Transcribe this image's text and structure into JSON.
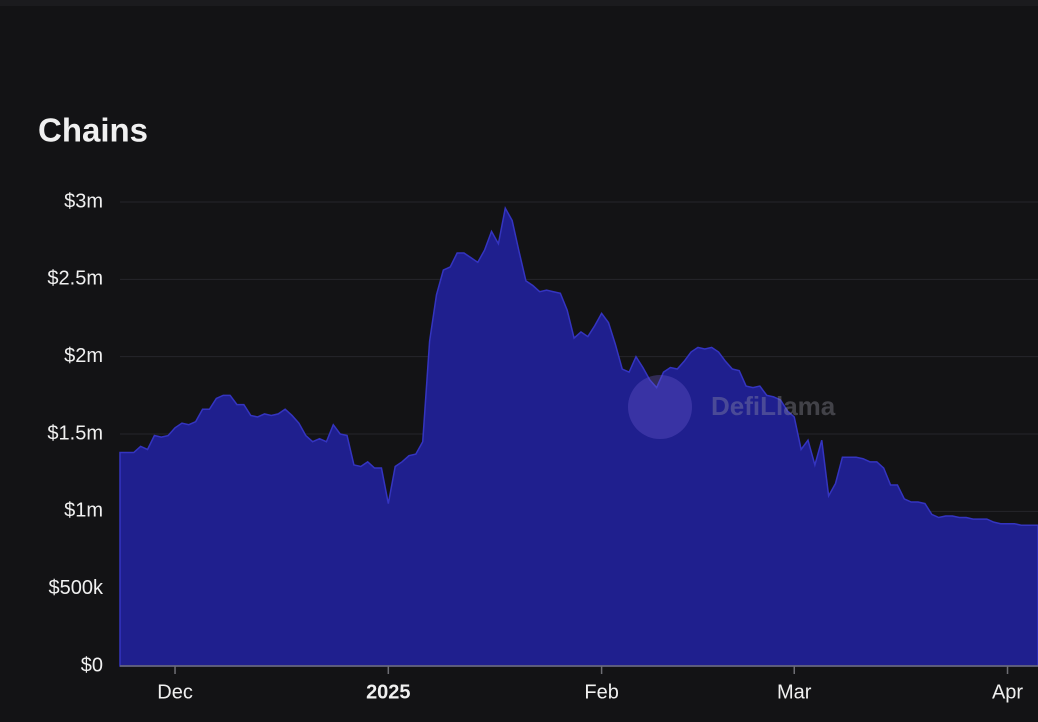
{
  "chart_data": {
    "type": "area",
    "title": "Chains",
    "watermark": "DefiLlama",
    "color": "#1f1f8e",
    "line_color": "#3434c0",
    "grid": true,
    "ylim": [
      0,
      3
    ],
    "yticks": [
      {
        "value": 0,
        "label": "$0"
      },
      {
        "value": 0.5,
        "label": "$500k"
      },
      {
        "value": 1,
        "label": "$1m"
      },
      {
        "value": 1.5,
        "label": "$1.5m"
      },
      {
        "value": 2,
        "label": "$2m"
      },
      {
        "value": 2.5,
        "label": "$2.5m"
      },
      {
        "value": 3,
        "label": "$3m"
      }
    ],
    "categories": [
      null,
      null,
      null,
      null,
      null,
      null,
      null,
      null,
      "Dec",
      null,
      null,
      null,
      null,
      null,
      null,
      null,
      null,
      null,
      null,
      null,
      null,
      null,
      null,
      null,
      null,
      null,
      null,
      null,
      null,
      null,
      null,
      null,
      null,
      null,
      null,
      null,
      null,
      null,
      null,
      "2025",
      null,
      null,
      null,
      null,
      null,
      null,
      null,
      null,
      null,
      null,
      null,
      null,
      null,
      null,
      null,
      null,
      null,
      null,
      null,
      null,
      null,
      null,
      null,
      null,
      null,
      null,
      null,
      null,
      null,
      null,
      "Feb",
      null,
      null,
      null,
      null,
      null,
      null,
      null,
      null,
      null,
      null,
      null,
      null,
      null,
      null,
      null,
      null,
      null,
      null,
      null,
      null,
      null,
      null,
      null,
      null,
      null,
      null,
      null,
      "Mar",
      null,
      null,
      null,
      null,
      null,
      null,
      null,
      null,
      null,
      null,
      null,
      null,
      null,
      null,
      null,
      null,
      null,
      null,
      null,
      null,
      null,
      null,
      null,
      null,
      null,
      null,
      null,
      null,
      null,
      null,
      "Apr",
      null,
      null,
      null,
      null
    ],
    "values": [
      1.38,
      1.38,
      1.38,
      1.42,
      1.4,
      1.49,
      1.48,
      1.49,
      1.54,
      1.57,
      1.56,
      1.58,
      1.66,
      1.66,
      1.73,
      1.75,
      1.75,
      1.69,
      1.69,
      1.62,
      1.61,
      1.63,
      1.62,
      1.63,
      1.66,
      1.62,
      1.57,
      1.49,
      1.45,
      1.47,
      1.45,
      1.56,
      1.5,
      1.49,
      1.3,
      1.29,
      1.32,
      1.28,
      1.28,
      1.05,
      1.29,
      1.32,
      1.36,
      1.37,
      1.45,
      2.1,
      2.4,
      2.56,
      2.58,
      2.67,
      2.67,
      2.64,
      2.61,
      2.69,
      2.81,
      2.73,
      2.96,
      2.88,
      2.68,
      2.49,
      2.46,
      2.42,
      2.43,
      2.42,
      2.41,
      2.3,
      2.12,
      2.16,
      2.13,
      2.2,
      2.28,
      2.22,
      2.08,
      1.92,
      1.9,
      2.0,
      1.93,
      1.85,
      1.8,
      1.9,
      1.93,
      1.92,
      1.97,
      2.03,
      2.06,
      2.05,
      2.06,
      2.03,
      1.97,
      1.92,
      1.91,
      1.81,
      1.8,
      1.81,
      1.75,
      1.74,
      1.72,
      1.65,
      1.61,
      1.4,
      1.46,
      1.3,
      1.46,
      1.1,
      1.18,
      1.35,
      1.35,
      1.35,
      1.34,
      1.32,
      1.32,
      1.28,
      1.17,
      1.17,
      1.08,
      1.06,
      1.06,
      1.05,
      0.98,
      0.96,
      0.97,
      0.97,
      0.96,
      0.96,
      0.95,
      0.95,
      0.95,
      0.93,
      0.92,
      0.92,
      0.92,
      0.91,
      0.91,
      0.91
    ]
  }
}
